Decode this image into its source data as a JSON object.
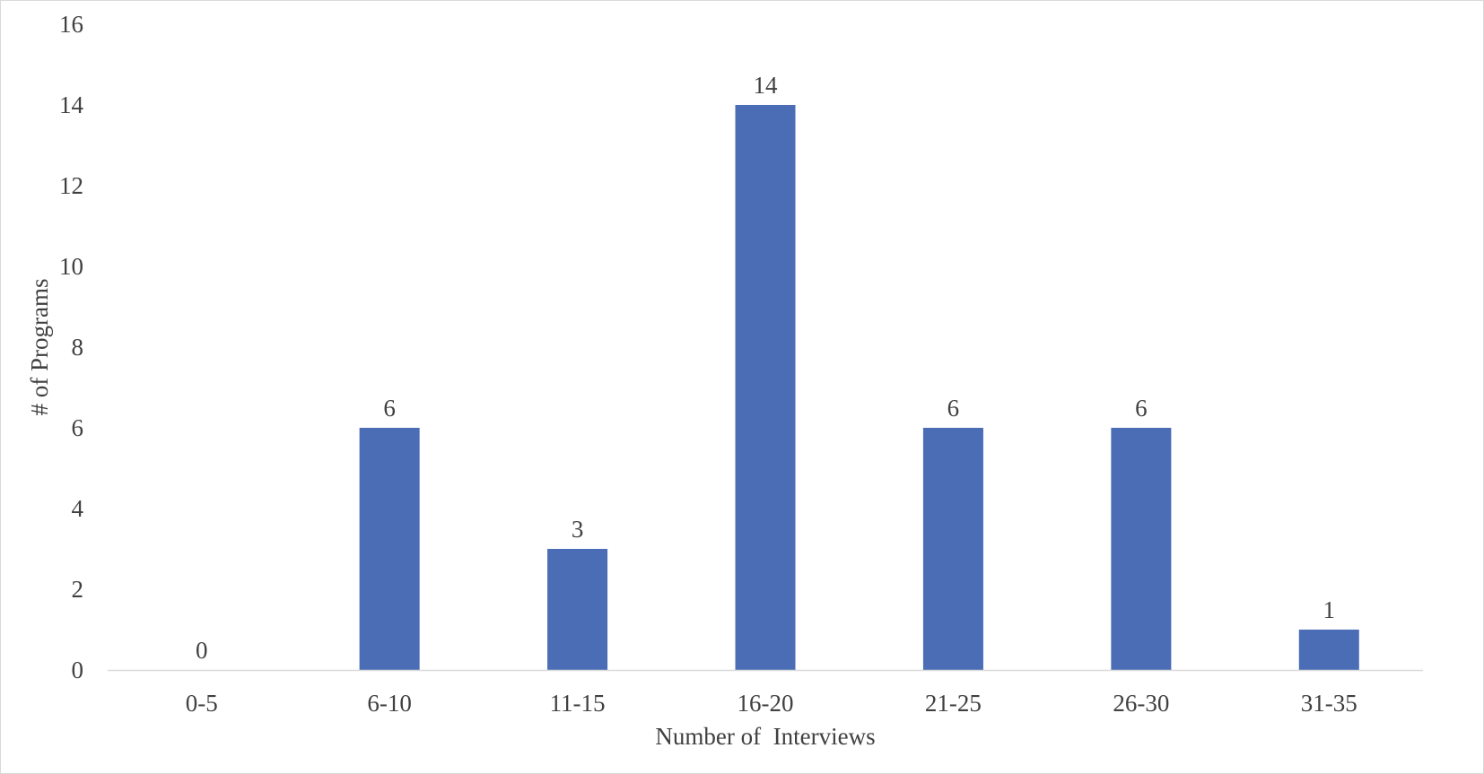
{
  "chart_data": {
    "type": "bar",
    "title": "",
    "xlabel": "Number of  Interviews",
    "ylabel": "# of Programs",
    "categories": [
      "0-5",
      "6-10",
      "11-15",
      "16-20",
      "21-25",
      "26-30",
      "31-35"
    ],
    "values": [
      0,
      6,
      3,
      14,
      6,
      6,
      1
    ],
    "data_labels": [
      "0",
      "6",
      "3",
      "14",
      "6",
      "6",
      "1"
    ],
    "ylim": [
      0,
      16
    ],
    "yticks": [
      0,
      2,
      4,
      6,
      8,
      10,
      12,
      14,
      16
    ],
    "ytick_labels": [
      "0",
      "2",
      "4",
      "6",
      "8",
      "10",
      "12",
      "14",
      "16"
    ],
    "grid": false,
    "legend": "none",
    "bar_color": "#4a6db5",
    "text_color": "#404040",
    "axis_color": "#d9d9d9"
  }
}
